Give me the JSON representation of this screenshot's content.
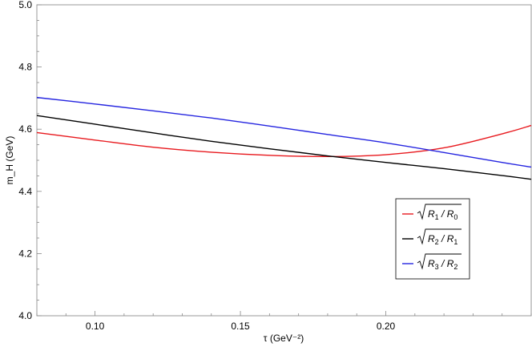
{
  "chart_data": {
    "type": "line",
    "xlabel": "τ (GeV⁻²)",
    "ylabel": "m_H (GeV)",
    "xlim": [
      0.08,
      0.25
    ],
    "ylim": [
      4.0,
      5.0
    ],
    "x_ticks": [
      0.1,
      0.15,
      0.2
    ],
    "x_tick_labels": [
      "0.10",
      "0.15",
      "0.20"
    ],
    "y_ticks": [
      4.0,
      4.2,
      4.4,
      4.6,
      4.8,
      5.0
    ],
    "y_tick_labels": [
      "4.0",
      "4.2",
      "4.4",
      "4.6",
      "4.8",
      "5.0"
    ],
    "grid": false,
    "legend_position": "right",
    "series": [
      {
        "name": "√R1/R0",
        "num": "R",
        "num_sub": "1",
        "den": "R",
        "den_sub": "0",
        "color": "#e8191e",
        "x": [
          0.08,
          0.1,
          0.12,
          0.14,
          0.16,
          0.18,
          0.2,
          0.22,
          0.24,
          0.25
        ],
        "y": [
          4.589,
          4.565,
          4.542,
          4.526,
          4.516,
          4.512,
          4.518,
          4.54,
          4.585,
          4.612
        ]
      },
      {
        "name": "√R2/R1",
        "num": "R",
        "num_sub": "2",
        "den": "R",
        "den_sub": "1",
        "color": "#000000",
        "x": [
          0.08,
          0.1,
          0.12,
          0.14,
          0.16,
          0.18,
          0.2,
          0.22,
          0.24,
          0.25
        ],
        "y": [
          4.644,
          4.616,
          4.588,
          4.561,
          4.537,
          4.514,
          4.493,
          4.473,
          4.451,
          4.439
        ]
      },
      {
        "name": "√R3/R2",
        "num": "R",
        "num_sub": "3",
        "den": "R",
        "den_sub": "2",
        "color": "#2525e0",
        "x": [
          0.08,
          0.1,
          0.12,
          0.14,
          0.16,
          0.18,
          0.2,
          0.22,
          0.24,
          0.25
        ],
        "y": [
          4.702,
          4.681,
          4.659,
          4.636,
          4.61,
          4.583,
          4.556,
          4.525,
          4.493,
          4.478
        ]
      }
    ]
  }
}
